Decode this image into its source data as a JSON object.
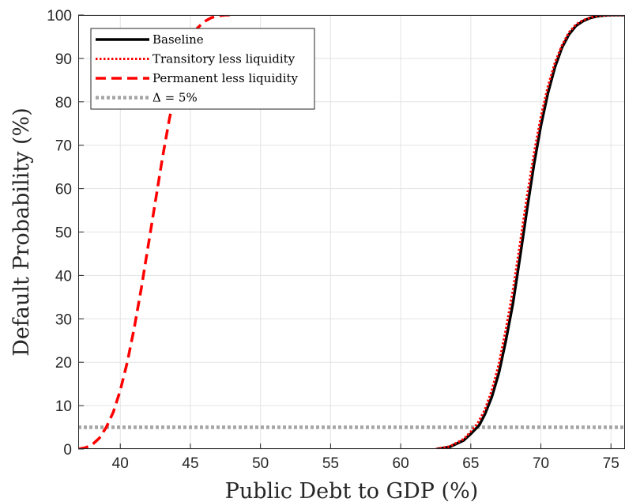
{
  "chart_data": {
    "type": "line",
    "title": "",
    "xlabel": "Public Debt to GDP (%)",
    "ylabel": "Default Probability (%)",
    "xlim": [
      37,
      76
    ],
    "ylim": [
      0,
      100
    ],
    "xticks": [
      40,
      45,
      50,
      55,
      60,
      65,
      70,
      75
    ],
    "yticks": [
      0,
      10,
      20,
      30,
      40,
      50,
      60,
      70,
      80,
      90,
      100
    ],
    "grid": true,
    "legend_position": "top-left",
    "series": [
      {
        "name": "Baseline",
        "color": "#000000",
        "style": "solid",
        "x": [
          62.6,
          63.5,
          64.5,
          65.0,
          65.6,
          66.0,
          66.5,
          67.0,
          67.5,
          68.0,
          68.5,
          69.0,
          69.5,
          70.0,
          70.5,
          71.0,
          71.5,
          72.0,
          72.5,
          73.0,
          73.5,
          74.0,
          74.5,
          75.0,
          75.5,
          76.0
        ],
        "y": [
          0,
          0.5,
          2,
          3.5,
          5.5,
          8,
          12,
          17.5,
          25,
          33.5,
          44,
          55,
          65.5,
          74.5,
          82,
          88,
          92.5,
          95.5,
          97.5,
          98.6,
          99.3,
          99.7,
          99.9,
          100,
          100,
          100
        ]
      },
      {
        "name": "Transitory less liquidity",
        "color": "#ff0000",
        "style": "dotted",
        "x": [
          62.5,
          63.5,
          64.5,
          65.0,
          65.5,
          66.0,
          66.5,
          67.0,
          67.5,
          68.0,
          68.5,
          69.0,
          69.5,
          70.0,
          70.5,
          71.0,
          71.5,
          72.0,
          72.5,
          73.0,
          73.5,
          74.0,
          74.5,
          75.0,
          75.5,
          76.0
        ],
        "y": [
          0,
          0.6,
          2.3,
          4,
          6,
          9,
          13.5,
          19.5,
          27.5,
          36.5,
          47,
          58,
          68,
          76.5,
          83.5,
          89,
          93,
          96,
          97.8,
          98.8,
          99.4,
          99.8,
          99.9,
          100,
          100,
          100
        ]
      },
      {
        "name": "Permanent less liquidity",
        "color": "#ff0000",
        "style": "dashed",
        "x": [
          37.0,
          37.5,
          38.0,
          38.5,
          39.0,
          39.5,
          40.0,
          40.5,
          41.0,
          41.5,
          42.0,
          42.5,
          43.0,
          43.5,
          44.0,
          44.5,
          45.0,
          45.5,
          46.0,
          46.5,
          47.0,
          47.5,
          48.0
        ],
        "y": [
          0,
          0.3,
          1,
          2.5,
          5,
          8.5,
          13.5,
          20,
          28,
          37,
          47,
          57,
          67,
          76,
          83.5,
          89.5,
          94,
          97,
          98.5,
          99.4,
          99.8,
          100,
          100
        ]
      },
      {
        "name": "Δ = 5%",
        "color": "#a6a6a6",
        "style": "dotted-thick",
        "x": [
          37,
          76
        ],
        "y": [
          5,
          5
        ]
      }
    ]
  }
}
